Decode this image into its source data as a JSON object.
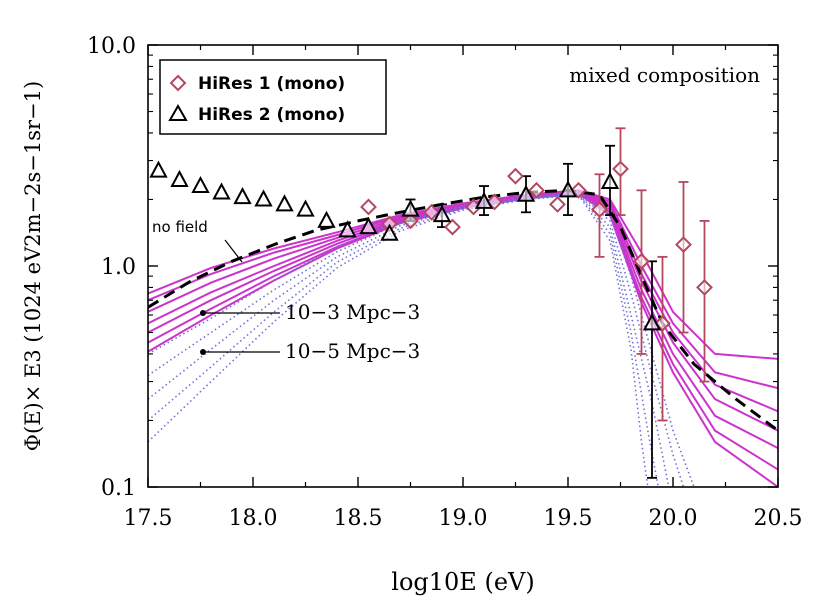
{
  "chart_data": {
    "type": "scatter",
    "title": "",
    "annotation_title": "mixed composition",
    "xlabel": "log10E (eV)",
    "ylabel": "Φ(E)× E3 (1024 eV2m−2s−1sr−1)",
    "xlim": [
      17.5,
      20.5
    ],
    "ylim": [
      0.1,
      10.0
    ],
    "yscale": "log",
    "x_ticks": [
      "17.5",
      "18.0",
      "18.5",
      "19.0",
      "19.5",
      "20.0",
      "20.5"
    ],
    "y_ticks": [
      "0.1",
      "1.0",
      "10.0"
    ],
    "legend_position": "top-left",
    "legend": [
      "HiRes 1 (mono)",
      "HiRes 2 (mono)"
    ],
    "annotations": {
      "no_field": "no field",
      "density_high": "10−3 Mpc−3",
      "density_low": "10−5 Mpc−3"
    },
    "series": [
      {
        "name": "HiRes 1 (mono)",
        "marker": "diamond",
        "color": "#b5475e",
        "points": [
          {
            "x": 18.55,
            "y": 1.85
          },
          {
            "x": 18.65,
            "y": 1.55
          },
          {
            "x": 18.75,
            "y": 1.6
          },
          {
            "x": 18.85,
            "y": 1.75
          },
          {
            "x": 18.95,
            "y": 1.5
          },
          {
            "x": 19.05,
            "y": 1.85
          },
          {
            "x": 19.15,
            "y": 1.95
          },
          {
            "x": 19.25,
            "y": 2.55
          },
          {
            "x": 19.35,
            "y": 2.2
          },
          {
            "x": 19.45,
            "y": 1.9
          },
          {
            "x": 19.55,
            "y": 2.2
          },
          {
            "x": 19.65,
            "y": 1.8,
            "err": [
              1.1,
              2.6
            ]
          },
          {
            "x": 19.75,
            "y": 2.75,
            "err": [
              1.7,
              4.2
            ]
          },
          {
            "x": 19.85,
            "y": 1.05,
            "err": [
              0.4,
              2.2
            ]
          },
          {
            "x": 19.95,
            "y": 0.55,
            "err": [
              0.2,
              1.1
            ]
          },
          {
            "x": 20.05,
            "y": 1.25,
            "err": [
              0.5,
              2.4
            ]
          },
          {
            "x": 20.15,
            "y": 0.8,
            "err": [
              0.3,
              1.6
            ]
          }
        ]
      },
      {
        "name": "HiRes 2 (mono)",
        "marker": "triangle",
        "color": "#000000",
        "points": [
          {
            "x": 17.55,
            "y": 2.7
          },
          {
            "x": 17.65,
            "y": 2.45
          },
          {
            "x": 17.75,
            "y": 2.3
          },
          {
            "x": 17.85,
            "y": 2.15
          },
          {
            "x": 17.95,
            "y": 2.05
          },
          {
            "x": 18.05,
            "y": 2.0
          },
          {
            "x": 18.15,
            "y": 1.9
          },
          {
            "x": 18.25,
            "y": 1.8
          },
          {
            "x": 18.35,
            "y": 1.6
          },
          {
            "x": 18.45,
            "y": 1.45
          },
          {
            "x": 18.55,
            "y": 1.5
          },
          {
            "x": 18.65,
            "y": 1.4
          },
          {
            "x": 18.75,
            "y": 1.8,
            "err": [
              1.6,
              2.0
            ]
          },
          {
            "x": 18.9,
            "y": 1.7,
            "err": [
              1.5,
              1.9
            ]
          },
          {
            "x": 19.1,
            "y": 1.95,
            "err": [
              1.7,
              2.3
            ]
          },
          {
            "x": 19.3,
            "y": 2.1,
            "err": [
              1.75,
              2.55
            ]
          },
          {
            "x": 19.5,
            "y": 2.2,
            "err": [
              1.7,
              2.9
            ]
          },
          {
            "x": 19.7,
            "y": 2.4,
            "err": [
              1.7,
              3.5
            ]
          },
          {
            "x": 19.9,
            "y": 0.55,
            "err": [
              0.11,
              1.05
            ]
          }
        ]
      },
      {
        "name": "no field",
        "type": "line",
        "style": "dashed",
        "color": "#000000",
        "points": [
          {
            "x": 17.5,
            "y": 0.65
          },
          {
            "x": 17.7,
            "y": 0.85
          },
          {
            "x": 17.9,
            "y": 1.05
          },
          {
            "x": 18.1,
            "y": 1.25
          },
          {
            "x": 18.3,
            "y": 1.45
          },
          {
            "x": 18.5,
            "y": 1.6
          },
          {
            "x": 18.7,
            "y": 1.75
          },
          {
            "x": 18.9,
            "y": 1.9
          },
          {
            "x": 19.1,
            "y": 2.05
          },
          {
            "x": 19.3,
            "y": 2.15
          },
          {
            "x": 19.5,
            "y": 2.2
          },
          {
            "x": 19.65,
            "y": 2.1
          },
          {
            "x": 19.75,
            "y": 1.5
          },
          {
            "x": 19.85,
            "y": 0.9
          },
          {
            "x": 19.95,
            "y": 0.55
          },
          {
            "x": 20.1,
            "y": 0.36
          },
          {
            "x": 20.3,
            "y": 0.25
          },
          {
            "x": 20.5,
            "y": 0.18
          }
        ]
      },
      {
        "name": "10−3 Mpc−3",
        "type": "line-band",
        "style": "solid",
        "color": "#cc33cc",
        "lines": [
          [
            [
              17.5,
              0.75
            ],
            [
              17.8,
              0.98
            ],
            [
              18.1,
              1.2
            ],
            [
              18.4,
              1.42
            ],
            [
              18.7,
              1.7
            ],
            [
              19.0,
              1.92
            ],
            [
              19.3,
              2.1
            ],
            [
              19.55,
              2.2
            ],
            [
              19.7,
              2.0
            ],
            [
              19.85,
              1.15
            ],
            [
              20.0,
              0.62
            ],
            [
              20.2,
              0.4
            ],
            [
              20.5,
              0.38
            ]
          ],
          [
            [
              17.5,
              0.7
            ],
            [
              17.8,
              0.92
            ],
            [
              18.1,
              1.15
            ],
            [
              18.4,
              1.38
            ],
            [
              18.7,
              1.68
            ],
            [
              19.0,
              1.9
            ],
            [
              19.3,
              2.08
            ],
            [
              19.55,
              2.18
            ],
            [
              19.7,
              1.95
            ],
            [
              19.85,
              1.0
            ],
            [
              20.0,
              0.55
            ],
            [
              20.2,
              0.33
            ],
            [
              20.5,
              0.28
            ]
          ],
          [
            [
              17.5,
              0.62
            ],
            [
              17.8,
              0.84
            ],
            [
              18.1,
              1.08
            ],
            [
              18.4,
              1.34
            ],
            [
              18.7,
              1.65
            ],
            [
              19.0,
              1.88
            ],
            [
              19.3,
              2.06
            ],
            [
              19.55,
              2.16
            ],
            [
              19.7,
              1.9
            ],
            [
              19.85,
              0.92
            ],
            [
              20.0,
              0.5
            ],
            [
              20.2,
              0.29
            ],
            [
              20.5,
              0.22
            ]
          ],
          [
            [
              17.5,
              0.55
            ],
            [
              17.8,
              0.76
            ],
            [
              18.1,
              1.0
            ],
            [
              18.4,
              1.3
            ],
            [
              18.7,
              1.62
            ],
            [
              19.0,
              1.86
            ],
            [
              19.3,
              2.05
            ],
            [
              19.55,
              2.15
            ],
            [
              19.7,
              1.85
            ],
            [
              19.85,
              0.85
            ],
            [
              20.0,
              0.45
            ],
            [
              20.2,
              0.25
            ],
            [
              20.5,
              0.18
            ]
          ],
          [
            [
              17.5,
              0.5
            ],
            [
              17.8,
              0.7
            ],
            [
              18.1,
              0.95
            ],
            [
              18.4,
              1.26
            ],
            [
              18.7,
              1.6
            ],
            [
              19.0,
              1.85
            ],
            [
              19.3,
              2.04
            ],
            [
              19.55,
              2.14
            ],
            [
              19.7,
              1.8
            ],
            [
              19.85,
              0.78
            ],
            [
              20.0,
              0.4
            ],
            [
              20.2,
              0.21
            ],
            [
              20.5,
              0.15
            ]
          ],
          [
            [
              17.5,
              0.45
            ],
            [
              17.8,
              0.64
            ],
            [
              18.1,
              0.9
            ],
            [
              18.4,
              1.22
            ],
            [
              18.7,
              1.58
            ],
            [
              19.0,
              1.84
            ],
            [
              19.3,
              2.03
            ],
            [
              19.55,
              2.13
            ],
            [
              19.7,
              1.75
            ],
            [
              19.85,
              0.72
            ],
            [
              20.0,
              0.36
            ],
            [
              20.2,
              0.18
            ],
            [
              20.5,
              0.12
            ]
          ],
          [
            [
              17.5,
              0.41
            ],
            [
              17.8,
              0.6
            ],
            [
              18.1,
              0.86
            ],
            [
              18.4,
              1.2
            ],
            [
              18.7,
              1.56
            ],
            [
              19.0,
              1.83
            ],
            [
              19.3,
              2.02
            ],
            [
              19.55,
              2.12
            ],
            [
              19.7,
              1.7
            ],
            [
              19.85,
              0.68
            ],
            [
              20.0,
              0.33
            ],
            [
              20.2,
              0.16
            ],
            [
              20.5,
              0.1
            ]
          ]
        ]
      },
      {
        "name": "10−5 Mpc−3",
        "type": "line-band",
        "style": "dotted",
        "color": "#6f72d8",
        "lines": [
          [
            [
              17.5,
              0.4
            ],
            [
              17.8,
              0.58
            ],
            [
              18.1,
              0.86
            ],
            [
              18.4,
              1.22
            ],
            [
              18.7,
              1.6
            ],
            [
              19.0,
              1.88
            ],
            [
              19.3,
              2.05
            ],
            [
              19.55,
              2.15
            ],
            [
              19.7,
              1.7
            ],
            [
              19.8,
              0.9
            ],
            [
              19.9,
              0.4
            ],
            [
              20.0,
              0.18
            ],
            [
              20.1,
              0.1
            ]
          ],
          [
            [
              17.5,
              0.32
            ],
            [
              17.8,
              0.5
            ],
            [
              18.1,
              0.78
            ],
            [
              18.4,
              1.16
            ],
            [
              18.7,
              1.56
            ],
            [
              19.0,
              1.85
            ],
            [
              19.3,
              2.03
            ],
            [
              19.55,
              2.13
            ],
            [
              19.7,
              1.6
            ],
            [
              19.8,
              0.75
            ],
            [
              19.9,
              0.32
            ],
            [
              20.0,
              0.14
            ],
            [
              20.05,
              0.1
            ]
          ],
          [
            [
              17.5,
              0.25
            ],
            [
              17.8,
              0.42
            ],
            [
              18.1,
              0.7
            ],
            [
              18.4,
              1.1
            ],
            [
              18.7,
              1.52
            ],
            [
              19.0,
              1.83
            ],
            [
              19.3,
              2.02
            ],
            [
              19.55,
              2.12
            ],
            [
              19.7,
              1.5
            ],
            [
              19.8,
              0.6
            ],
            [
              19.9,
              0.24
            ],
            [
              19.98,
              0.1
            ]
          ],
          [
            [
              17.5,
              0.2
            ],
            [
              17.8,
              0.35
            ],
            [
              18.1,
              0.62
            ],
            [
              18.4,
              1.04
            ],
            [
              18.7,
              1.48
            ],
            [
              19.0,
              1.81
            ],
            [
              19.3,
              2.01
            ],
            [
              19.55,
              2.11
            ],
            [
              19.7,
              1.4
            ],
            [
              19.8,
              0.5
            ],
            [
              19.88,
              0.18
            ],
            [
              19.93,
              0.1
            ]
          ],
          [
            [
              17.5,
              0.16
            ],
            [
              17.8,
              0.3
            ],
            [
              18.1,
              0.56
            ],
            [
              18.4,
              0.98
            ],
            [
              18.7,
              1.44
            ],
            [
              19.0,
              1.79
            ],
            [
              19.3,
              2.0
            ],
            [
              19.55,
              2.1
            ],
            [
              19.7,
              1.3
            ],
            [
              19.8,
              0.42
            ],
            [
              19.85,
              0.16
            ],
            [
              19.88,
              0.1
            ]
          ]
        ]
      }
    ]
  }
}
